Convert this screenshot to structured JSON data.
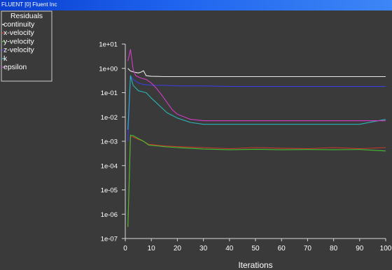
{
  "window": {
    "title": "FLUENT [0] Fluent Inc"
  },
  "chart_data": {
    "type": "line",
    "title": "",
    "xlabel": "Iterations",
    "ylabel": "",
    "xlim": [
      0,
      100
    ],
    "ylim": [
      1e-07,
      10
    ],
    "y_scale": "log",
    "x_ticks": [
      "0",
      "10",
      "20",
      "30",
      "40",
      "50",
      "60",
      "70",
      "80",
      "90",
      "100"
    ],
    "y_ticks": [
      "1e-07",
      "1e-06",
      "1e-05",
      "1e-04",
      "1e-03",
      "1e-02",
      "1e-01",
      "1e+00",
      "1e+01"
    ],
    "legend_title": "Residuals",
    "legend_position": "top-left",
    "grid": false,
    "background": "#3a3a3a",
    "series": [
      {
        "name": "continuity",
        "color": "#e8e8e8",
        "x": [
          1,
          2,
          3,
          4,
          5,
          6,
          7,
          8,
          10,
          15,
          20,
          30,
          40,
          50,
          60,
          70,
          80,
          90,
          100
        ],
        "y": [
          1.0,
          0.78,
          0.72,
          0.68,
          0.65,
          0.7,
          0.8,
          0.5,
          0.47,
          0.46,
          0.46,
          0.46,
          0.46,
          0.46,
          0.46,
          0.46,
          0.46,
          0.46,
          0.46
        ]
      },
      {
        "name": "x-velocity",
        "color": "#c83a2a",
        "x": [
          1,
          2,
          3,
          5,
          7,
          9,
          12,
          15,
          20,
          30,
          40,
          50,
          60,
          70,
          80,
          90,
          100
        ],
        "y": [
          3e-07,
          0.0016,
          0.0015,
          0.0012,
          0.001,
          0.00075,
          0.0007,
          0.00065,
          0.0006,
          0.00055,
          0.0005,
          0.00055,
          0.00052,
          0.0005,
          0.00055,
          0.0005,
          0.00055
        ]
      },
      {
        "name": "y-velocity",
        "color": "#44c032",
        "x": [
          1,
          2,
          3,
          5,
          7,
          9,
          12,
          15,
          20,
          30,
          40,
          50,
          60,
          70,
          80,
          90,
          100
        ],
        "y": [
          3e-07,
          0.0018,
          0.0017,
          0.0013,
          0.001,
          0.0007,
          0.00065,
          0.0006,
          0.00055,
          0.00048,
          0.00045,
          0.00047,
          0.00045,
          0.00046,
          0.00045,
          0.00046,
          0.0004
        ]
      },
      {
        "name": "z-velocity",
        "color": "#3c3ce0",
        "x": [
          1,
          2,
          3,
          4,
          5,
          7,
          10,
          15,
          20,
          30,
          40,
          50,
          60,
          70,
          80,
          90,
          100
        ],
        "y": [
          0.001,
          0.5,
          0.35,
          0.3,
          0.25,
          0.22,
          0.2,
          0.2,
          0.19,
          0.19,
          0.18,
          0.18,
          0.18,
          0.18,
          0.18,
          0.18,
          0.18
        ]
      },
      {
        "name": "k",
        "color": "#2ab4b4",
        "x": [
          1,
          2,
          3,
          5,
          8,
          10,
          13,
          16,
          20,
          25,
          30,
          40,
          50,
          60,
          70,
          80,
          90,
          100
        ],
        "y": [
          0.003,
          0.5,
          0.2,
          0.12,
          0.1,
          0.06,
          0.03,
          0.015,
          0.009,
          0.006,
          0.005,
          0.005,
          0.005,
          0.005,
          0.005,
          0.005,
          0.005,
          0.008
        ]
      },
      {
        "name": "epsilon",
        "color": "#d23cc8",
        "x": [
          1,
          2,
          3,
          4,
          6,
          8,
          10,
          12,
          14,
          16,
          18,
          20,
          25,
          30,
          40,
          50,
          60,
          70,
          80,
          90,
          100
        ],
        "y": [
          2.0,
          6.0,
          0.9,
          0.5,
          0.4,
          0.35,
          0.25,
          0.15,
          0.08,
          0.04,
          0.02,
          0.013,
          0.008,
          0.007,
          0.007,
          0.007,
          0.007,
          0.007,
          0.007,
          0.007,
          0.007
        ]
      }
    ]
  }
}
